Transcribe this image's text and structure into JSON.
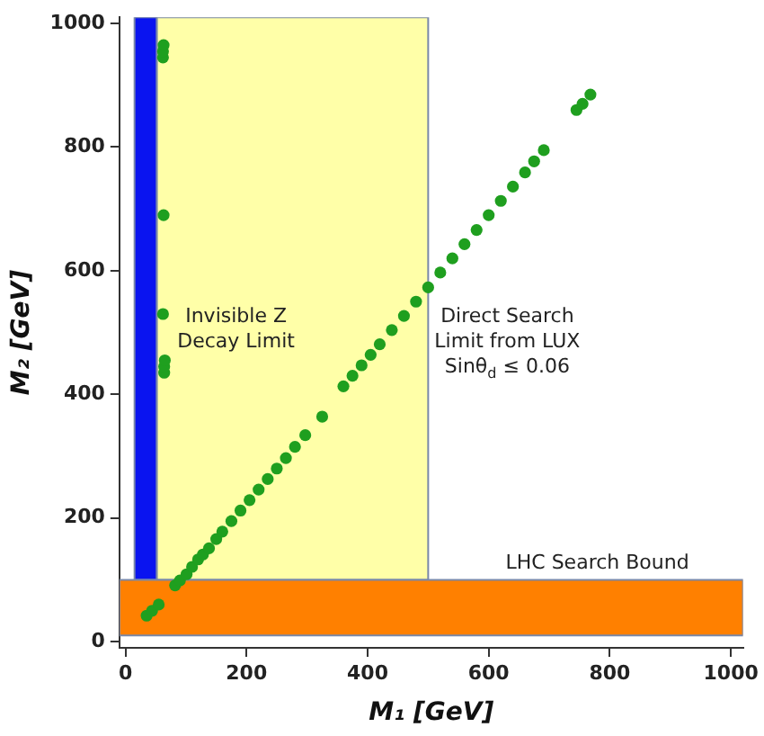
{
  "chart_data": {
    "type": "scatter",
    "xlabel": "M₁ [GeV]",
    "ylabel": "M₂ [GeV]",
    "xlim": [
      -10,
      1020
    ],
    "ylim": [
      -10,
      1010
    ],
    "xticks": [
      0,
      200,
      400,
      600,
      800,
      1000
    ],
    "yticks": [
      0,
      200,
      400,
      600,
      800,
      1000
    ],
    "grid": false,
    "legend": false,
    "marker": "circle",
    "bands": [
      {
        "axis": "x",
        "from": 15,
        "to": 52,
        "label": "Invisible Z\nDecay Limit",
        "color": "#0a14f0"
      },
      {
        "axis": "x",
        "from": 52,
        "to": 500,
        "label": "Direct Search\nLimit from LUX\nSinθ$_{d}$ ≤ 0.06",
        "color": "#ffffa8"
      },
      {
        "axis": "y",
        "from": 10,
        "to": 100,
        "label": "LHC Search Bound",
        "color": "#ff8000"
      }
    ],
    "series": [
      {
        "color": "#1f9f1f",
        "x": [
          35,
          44,
          55,
          82,
          90,
          101,
          110,
          120,
          128,
          138,
          150,
          160,
          175,
          190,
          205,
          220,
          235,
          250,
          265,
          280,
          297,
          325,
          360,
          375,
          390,
          405,
          420,
          440,
          460,
          480,
          500,
          520,
          540,
          560,
          580,
          600,
          620,
          640,
          660,
          675,
          691,
          745,
          755,
          768,
          62,
          62,
          63,
          63,
          62,
          64,
          64,
          65
        ],
        "values": [
          42,
          50,
          60,
          91,
          99,
          109,
          121,
          133,
          141,
          151,
          166,
          178,
          195,
          212,
          229,
          246,
          263,
          280,
          297,
          315,
          334,
          364,
          413,
          430,
          447,
          464,
          481,
          504,
          527,
          550,
          573,
          597,
          620,
          643,
          666,
          690,
          713,
          736,
          759,
          777,
          795,
          860,
          870,
          885,
          945,
          955,
          965,
          690,
          530,
          435,
          445,
          455
        ]
      }
    ]
  }
}
